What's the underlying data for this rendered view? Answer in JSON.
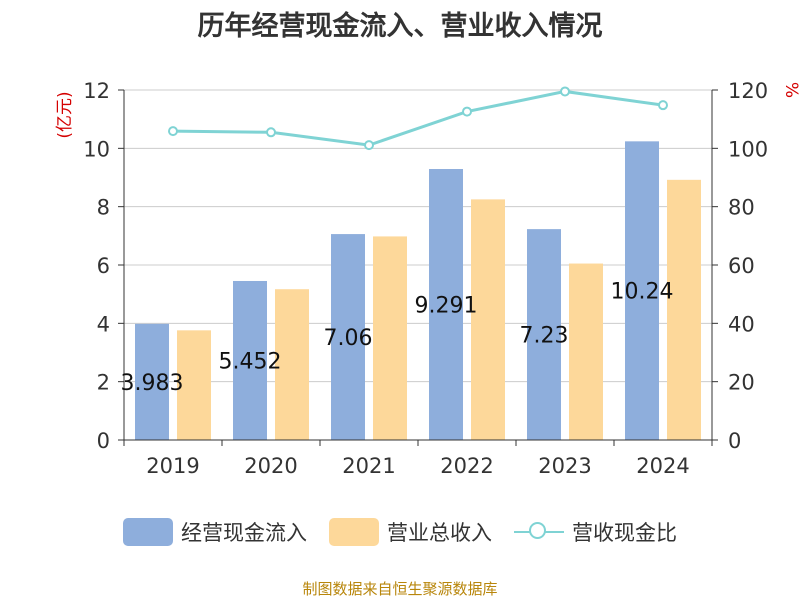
{
  "title": "历年经营现金流入、营业收入情况",
  "source": "制图数据来自恒生聚源数据库",
  "colors": {
    "cash_inflow": "#8eaedc",
    "revenue": "#fdd89a",
    "ratio": "#7fd3d4",
    "left_unit": "#d40000",
    "axis": "#333333",
    "grid": "#cccccc"
  },
  "legend": {
    "cash_inflow": "经营现金流入",
    "revenue": "营业总收入",
    "ratio": "营收现金比"
  },
  "chart_data": {
    "type": "bar",
    "title": "历年经营现金流入、营业收入情况",
    "categories": [
      "2019",
      "2020",
      "2021",
      "2022",
      "2023",
      "2024"
    ],
    "series": [
      {
        "name": "经营现金流入",
        "type": "bar",
        "axis": "left",
        "values": [
          3.983,
          5.452,
          7.06,
          9.291,
          7.23,
          10.24
        ],
        "labels": [
          "3.983",
          "5.452",
          "7.06",
          "9.291",
          "7.23",
          "10.24"
        ]
      },
      {
        "name": "营业总收入",
        "type": "bar",
        "axis": "left",
        "values": [
          3.76,
          5.17,
          6.98,
          8.25,
          6.05,
          8.92
        ]
      },
      {
        "name": "营收现金比",
        "type": "line",
        "axis": "right",
        "values": [
          105.9,
          105.5,
          101.1,
          112.6,
          119.5,
          114.8
        ]
      }
    ],
    "ylabel": "(亿元)",
    "y2label": "%",
    "ylim": [
      0,
      12
    ],
    "y2lim": [
      0,
      120
    ],
    "yticks": [
      "0",
      "2",
      "4",
      "6",
      "8",
      "10",
      "12"
    ],
    "y2ticks": [
      "0",
      "20",
      "40",
      "60",
      "80",
      "100",
      "120"
    ],
    "grid": true,
    "legend_position": "bottom"
  }
}
